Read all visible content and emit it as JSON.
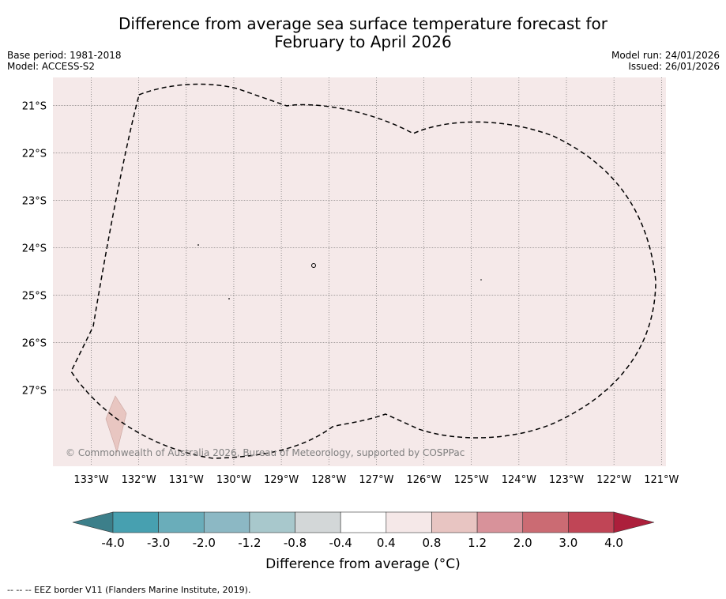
{
  "title_line1": "Difference from average sea surface temperature forecast for",
  "title_line2": "February to April 2026",
  "meta_left": [
    "Base period: 1981-2018",
    "Model: ACCESS-S2"
  ],
  "meta_right": [
    "Model run: 24/01/2026",
    "Issued: 26/01/2026"
  ],
  "copyright": "© Commonwealth of Australia 2026, Bureau of Meteorology, supported by COSPPac",
  "lat_labels": [
    "21°S",
    "22°S",
    "23°S",
    "24°S",
    "25°S",
    "26°S",
    "27°S"
  ],
  "lon_labels": [
    "133°W",
    "132°W",
    "131°W",
    "130°W",
    "129°W",
    "128°W",
    "127°W",
    "126°W",
    "125°W",
    "124°W",
    "123°W",
    "122°W",
    "121°W"
  ],
  "colorbar": {
    "label": "Difference from average (°C)",
    "ticks": [
      "-4.0",
      "-3.0",
      "-2.0",
      "-1.2",
      "-0.8",
      "-0.4",
      "0.4",
      "0.8",
      "1.2",
      "2.0",
      "3.0",
      "4.0"
    ],
    "colors": [
      "#3c7f8a",
      "#47a0b0",
      "#6aadba",
      "#8cb8c4",
      "#a8c8cc",
      "#d3d7d8",
      "#ffffff",
      "#f5e8e8",
      "#e8c5c2",
      "#d8929a",
      "#cb6b73",
      "#c04556",
      "#ac1f3b"
    ]
  },
  "map_colors": {
    "ocean": "#f5e9e9",
    "anomaly_patch": "#e8c6c1"
  },
  "footer": "--  --  -- EEZ border V11 (Flanders Marine Institute, 2019)."
}
